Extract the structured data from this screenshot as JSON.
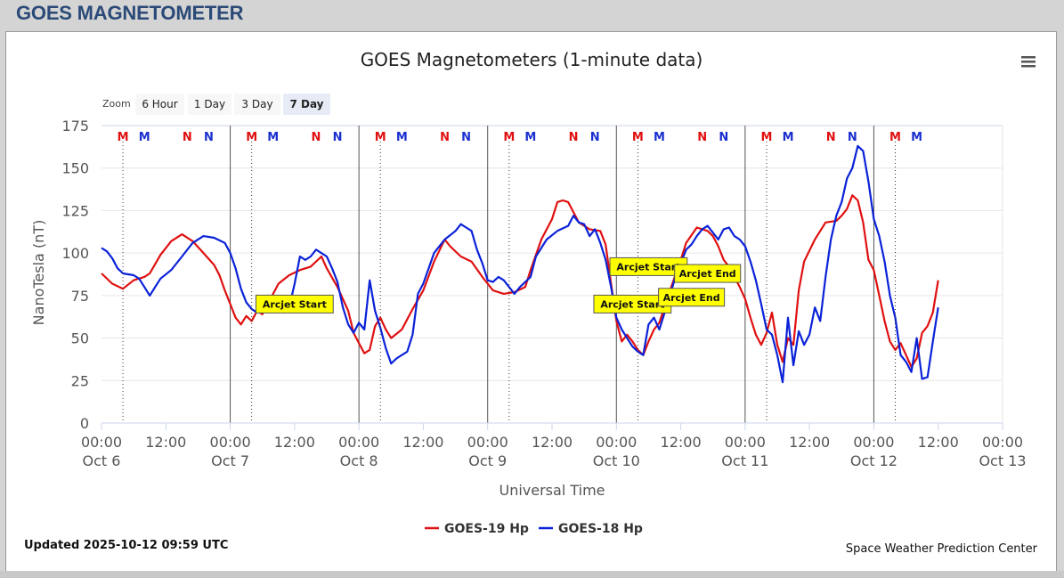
{
  "page": {
    "title": "GOES MAGNETOMETER"
  },
  "toolbar": {
    "menu_icon": "hamburger-menu-icon",
    "zoom_label": "Zoom",
    "zoom_buttons": [
      "6 Hour",
      "1 Day",
      "3 Day",
      "7 Day"
    ],
    "zoom_selected": "7 Day"
  },
  "footer": {
    "updated": "Updated 2025-10-12 09:59 UTC",
    "credit": "Space Weather Prediction Center"
  },
  "chart_data": {
    "type": "line",
    "title": "GOES Magnetometers (1-minute data)",
    "xlabel": "Universal Time",
    "ylabel": "NanoTesla (nT)",
    "x_unit": "hours since Oct 6 00:00 UTC",
    "xlim": [
      0,
      168
    ],
    "ylim": [
      0,
      175
    ],
    "yticks": [
      0,
      25,
      50,
      75,
      100,
      125,
      150,
      175
    ],
    "xticks": [
      {
        "x": 0,
        "time": "00:00",
        "date": "Oct 6"
      },
      {
        "x": 12,
        "time": "12:00",
        "date": ""
      },
      {
        "x": 24,
        "time": "00:00",
        "date": "Oct 7"
      },
      {
        "x": 36,
        "time": "12:00",
        "date": ""
      },
      {
        "x": 48,
        "time": "00:00",
        "date": "Oct 8"
      },
      {
        "x": 60,
        "time": "12:00",
        "date": ""
      },
      {
        "x": 72,
        "time": "00:00",
        "date": "Oct 9"
      },
      {
        "x": 84,
        "time": "12:00",
        "date": ""
      },
      {
        "x": 96,
        "time": "00:00",
        "date": "Oct 10"
      },
      {
        "x": 108,
        "time": "12:00",
        "date": ""
      },
      {
        "x": 120,
        "time": "00:00",
        "date": "Oct 11"
      },
      {
        "x": 132,
        "time": "12:00",
        "date": ""
      },
      {
        "x": 144,
        "time": "00:00",
        "date": "Oct 12"
      },
      {
        "x": 156,
        "time": "12:00",
        "date": ""
      },
      {
        "x": 168,
        "time": "00:00",
        "date": "Oct 13"
      }
    ],
    "grid": true,
    "legend": "bottom-center",
    "day_lines": [
      24,
      48,
      72,
      96,
      120,
      144
    ],
    "series": [
      {
        "name": "GOES-19 Hp",
        "color": "#e01010",
        "points": [
          [
            0,
            88
          ],
          [
            2,
            82
          ],
          [
            4,
            79
          ],
          [
            6,
            84
          ],
          [
            8,
            86
          ],
          [
            9,
            88
          ],
          [
            11,
            99
          ],
          [
            13,
            107
          ],
          [
            15,
            111
          ],
          [
            17,
            107
          ],
          [
            19,
            100
          ],
          [
            21,
            93
          ],
          [
            22,
            87
          ],
          [
            23,
            78
          ],
          [
            24,
            70
          ],
          [
            25,
            62
          ],
          [
            26,
            58
          ],
          [
            27,
            63
          ],
          [
            28,
            60
          ],
          [
            29,
            66
          ],
          [
            30,
            64
          ],
          [
            31,
            70
          ],
          [
            33,
            82
          ],
          [
            35,
            87
          ],
          [
            37,
            90
          ],
          [
            39,
            92
          ],
          [
            41,
            98
          ],
          [
            42,
            91
          ],
          [
            44,
            80
          ],
          [
            46,
            66
          ],
          [
            47,
            53
          ],
          [
            48,
            47
          ],
          [
            49,
            41
          ],
          [
            50,
            43
          ],
          [
            51,
            57
          ],
          [
            52,
            62
          ],
          [
            53,
            55
          ],
          [
            54,
            50
          ],
          [
            56,
            55
          ],
          [
            58,
            67
          ],
          [
            60,
            78
          ],
          [
            62,
            95
          ],
          [
            64,
            108
          ],
          [
            65,
            104
          ],
          [
            67,
            98
          ],
          [
            69,
            95
          ],
          [
            71,
            86
          ],
          [
            72,
            82
          ],
          [
            73,
            78
          ],
          [
            75,
            76
          ],
          [
            77,
            77
          ],
          [
            79,
            80
          ],
          [
            80,
            90
          ],
          [
            82,
            108
          ],
          [
            84,
            120
          ],
          [
            85,
            130
          ],
          [
            86,
            131
          ],
          [
            87,
            130
          ],
          [
            89,
            118
          ],
          [
            91,
            114
          ],
          [
            93,
            113
          ],
          [
            94,
            105
          ],
          [
            95,
            82
          ],
          [
            96,
            60
          ],
          [
            97,
            48
          ],
          [
            98,
            52
          ],
          [
            99,
            48
          ],
          [
            100,
            43
          ],
          [
            101,
            40
          ],
          [
            102,
            48
          ],
          [
            103,
            55
          ],
          [
            104,
            59
          ],
          [
            106,
            78
          ],
          [
            108,
            96
          ],
          [
            109,
            106
          ],
          [
            111,
            115
          ],
          [
            113,
            113
          ],
          [
            114,
            110
          ],
          [
            115,
            104
          ],
          [
            116,
            96
          ],
          [
            117,
            92
          ],
          [
            118,
            86
          ],
          [
            119,
            80
          ],
          [
            120,
            73
          ],
          [
            121,
            62
          ],
          [
            122,
            52
          ],
          [
            123,
            46
          ],
          [
            124,
            53
          ],
          [
            125,
            65
          ],
          [
            126,
            46
          ],
          [
            127,
            36
          ],
          [
            128,
            50
          ],
          [
            129,
            46
          ],
          [
            130,
            78
          ],
          [
            131,
            95
          ],
          [
            133,
            108
          ],
          [
            135,
            118
          ],
          [
            137,
            119
          ],
          [
            138,
            122
          ],
          [
            139,
            126
          ],
          [
            140,
            134
          ],
          [
            141,
            131
          ],
          [
            142,
            118
          ],
          [
            143,
            96
          ],
          [
            144,
            90
          ],
          [
            145,
            75
          ],
          [
            146,
            60
          ],
          [
            147,
            48
          ],
          [
            148,
            43
          ],
          [
            149,
            47
          ],
          [
            150,
            40
          ],
          [
            151,
            33
          ],
          [
            152,
            38
          ],
          [
            153,
            53
          ],
          [
            154,
            57
          ],
          [
            155,
            65
          ],
          [
            156,
            84
          ]
        ]
      },
      {
        "name": "GOES-18 Hp",
        "color": "#0a22d8",
        "points": [
          [
            0,
            103
          ],
          [
            1,
            101
          ],
          [
            2,
            97
          ],
          [
            3,
            91
          ],
          [
            4,
            88
          ],
          [
            6,
            87
          ],
          [
            7,
            85
          ],
          [
            8,
            80
          ],
          [
            9,
            75
          ],
          [
            10,
            80
          ],
          [
            11,
            85
          ],
          [
            13,
            90
          ],
          [
            15,
            98
          ],
          [
            17,
            106
          ],
          [
            19,
            110
          ],
          [
            21,
            109
          ],
          [
            23,
            106
          ],
          [
            24,
            100
          ],
          [
            25,
            91
          ],
          [
            26,
            79
          ],
          [
            27,
            71
          ],
          [
            28,
            67
          ],
          [
            29,
            65
          ],
          [
            30,
            67
          ],
          [
            31,
            75
          ],
          [
            32,
            69
          ],
          [
            33,
            68
          ],
          [
            34,
            65
          ],
          [
            35,
            68
          ],
          [
            36,
            82
          ],
          [
            37,
            98
          ],
          [
            38,
            96
          ],
          [
            39,
            98
          ],
          [
            40,
            102
          ],
          [
            42,
            98
          ],
          [
            43,
            91
          ],
          [
            44,
            83
          ],
          [
            45,
            68
          ],
          [
            46,
            58
          ],
          [
            47,
            53
          ],
          [
            48,
            59
          ],
          [
            49,
            55
          ],
          [
            50,
            84
          ],
          [
            51,
            66
          ],
          [
            52,
            56
          ],
          [
            53,
            44
          ],
          [
            54,
            35
          ],
          [
            55,
            38
          ],
          [
            57,
            42
          ],
          [
            58,
            52
          ],
          [
            59,
            76
          ],
          [
            60,
            82
          ],
          [
            62,
            100
          ],
          [
            64,
            108
          ],
          [
            66,
            113
          ],
          [
            67,
            117
          ],
          [
            68,
            115
          ],
          [
            69,
            113
          ],
          [
            70,
            102
          ],
          [
            71,
            94
          ],
          [
            72,
            84
          ],
          [
            73,
            83
          ],
          [
            74,
            86
          ],
          [
            75,
            84
          ],
          [
            77,
            76
          ],
          [
            78,
            80
          ],
          [
            80,
            86
          ],
          [
            81,
            98
          ],
          [
            83,
            108
          ],
          [
            85,
            113
          ],
          [
            87,
            116
          ],
          [
            88,
            122
          ],
          [
            89,
            118
          ],
          [
            90,
            117
          ],
          [
            91,
            110
          ],
          [
            92,
            114
          ],
          [
            93,
            106
          ],
          [
            94,
            96
          ],
          [
            95,
            80
          ],
          [
            96,
            62
          ],
          [
            97,
            55
          ],
          [
            98,
            50
          ],
          [
            99,
            45
          ],
          [
            100,
            42
          ],
          [
            101,
            40
          ],
          [
            102,
            58
          ],
          [
            103,
            62
          ],
          [
            104,
            55
          ],
          [
            105,
            65
          ],
          [
            106,
            75
          ],
          [
            107,
            86
          ],
          [
            109,
            102
          ],
          [
            110,
            105
          ],
          [
            111,
            110
          ],
          [
            112,
            114
          ],
          [
            113,
            116
          ],
          [
            114,
            112
          ],
          [
            115,
            108
          ],
          [
            116,
            114
          ],
          [
            117,
            115
          ],
          [
            118,
            110
          ],
          [
            119,
            108
          ],
          [
            120,
            104
          ],
          [
            121,
            95
          ],
          [
            122,
            84
          ],
          [
            123,
            70
          ],
          [
            124,
            55
          ],
          [
            125,
            52
          ],
          [
            126,
            40
          ],
          [
            127,
            24
          ],
          [
            128,
            62
          ],
          [
            129,
            34
          ],
          [
            130,
            54
          ],
          [
            131,
            46
          ],
          [
            132,
            52
          ],
          [
            133,
            68
          ],
          [
            134,
            60
          ],
          [
            135,
            86
          ],
          [
            136,
            108
          ],
          [
            137,
            122
          ],
          [
            138,
            130
          ],
          [
            139,
            144
          ],
          [
            140,
            150
          ],
          [
            141,
            163
          ],
          [
            142,
            160
          ],
          [
            143,
            142
          ],
          [
            144,
            120
          ],
          [
            145,
            110
          ],
          [
            146,
            95
          ],
          [
            147,
            75
          ],
          [
            148,
            62
          ],
          [
            149,
            40
          ],
          [
            150,
            36
          ],
          [
            151,
            30
          ],
          [
            152,
            50
          ],
          [
            153,
            26
          ],
          [
            154,
            27
          ],
          [
            155,
            48
          ],
          [
            156,
            68
          ]
        ]
      }
    ],
    "markers": [
      {
        "label": "M",
        "x": 4,
        "color": "#e01010"
      },
      {
        "label": "M",
        "x": 8,
        "color": "#1a2fd0"
      },
      {
        "label": "N",
        "x": 16,
        "color": "#e01010"
      },
      {
        "label": "N",
        "x": 20,
        "color": "#1a2fd0"
      },
      {
        "label": "M",
        "x": 28,
        "color": "#e01010"
      },
      {
        "label": "M",
        "x": 32,
        "color": "#1a2fd0"
      },
      {
        "label": "N",
        "x": 40,
        "color": "#e01010"
      },
      {
        "label": "N",
        "x": 44,
        "color": "#1a2fd0"
      },
      {
        "label": "M",
        "x": 52,
        "color": "#e01010"
      },
      {
        "label": "M",
        "x": 56,
        "color": "#1a2fd0"
      },
      {
        "label": "N",
        "x": 64,
        "color": "#e01010"
      },
      {
        "label": "N",
        "x": 68,
        "color": "#1a2fd0"
      },
      {
        "label": "M",
        "x": 76,
        "color": "#e01010"
      },
      {
        "label": "M",
        "x": 80,
        "color": "#1a2fd0"
      },
      {
        "label": "N",
        "x": 88,
        "color": "#e01010"
      },
      {
        "label": "N",
        "x": 92,
        "color": "#1a2fd0"
      },
      {
        "label": "M",
        "x": 100,
        "color": "#e01010"
      },
      {
        "label": "M",
        "x": 104,
        "color": "#1a2fd0"
      },
      {
        "label": "N",
        "x": 112,
        "color": "#e01010"
      },
      {
        "label": "N",
        "x": 116,
        "color": "#1a2fd0"
      },
      {
        "label": "M",
        "x": 124,
        "color": "#e01010"
      },
      {
        "label": "M",
        "x": 128,
        "color": "#1a2fd0"
      },
      {
        "label": "N",
        "x": 136,
        "color": "#e01010"
      },
      {
        "label": "N",
        "x": 140,
        "color": "#1a2fd0"
      },
      {
        "label": "M",
        "x": 148,
        "color": "#e01010"
      },
      {
        "label": "M",
        "x": 152,
        "color": "#1a2fd0"
      }
    ],
    "annotations": [
      {
        "text": "Arcjet Start",
        "x": 36,
        "y": 70
      },
      {
        "text": "Arcjet Start",
        "x": 102,
        "y": 92
      },
      {
        "text": "Arcjet End",
        "x": 113,
        "y": 88
      },
      {
        "text": "Arcjet Start",
        "x": 99,
        "y": 70
      },
      {
        "text": "Arcjet End",
        "x": 110,
        "y": 74
      }
    ]
  }
}
